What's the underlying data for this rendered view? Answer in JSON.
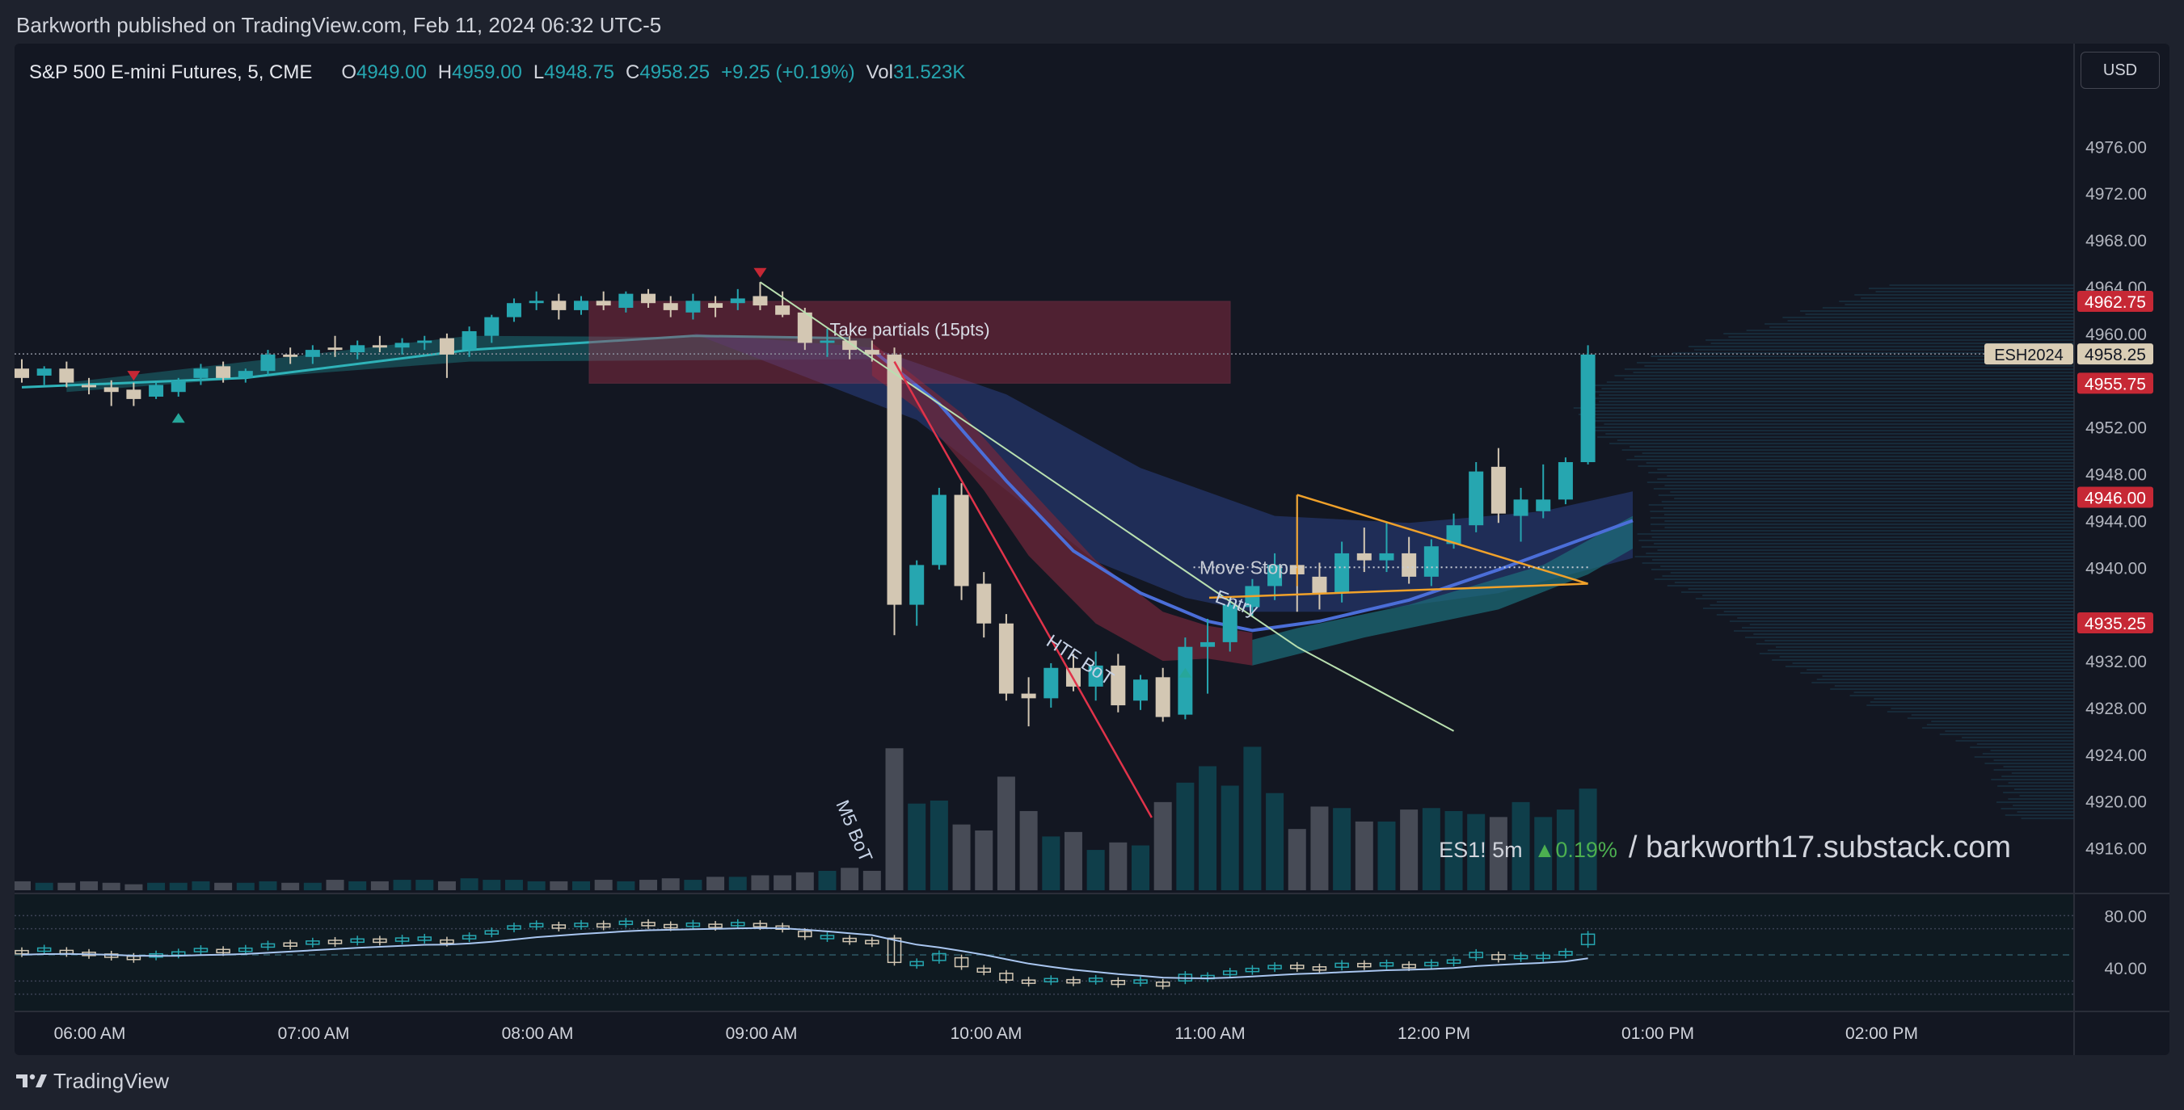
{
  "header": {
    "publisher_line": "Barkworth published on TradingView.com, Feb 11, 2024 06:32 UTC-5"
  },
  "legend": {
    "symbol": "S&P 500 E-mini Futures, 5, CME",
    "open_label": "O",
    "open": "4949.00",
    "high_label": "H",
    "high": "4959.00",
    "low_label": "L",
    "low": "4948.75",
    "close_label": "C",
    "close": "4958.25",
    "change": "+9.25 (+0.19%)",
    "vol_label": "Vol",
    "vol": "31.523K"
  },
  "currency_button": "USD",
  "watermark": {
    "ticker": "ES1! 5m",
    "change": "▲0.19%",
    "site": "/ barkworth17.substack.com"
  },
  "footer": {
    "brand": "TradingView"
  },
  "colors": {
    "up": "#26a6b0",
    "down": "#d3c7b3",
    "volume_up": "#0f3e4a",
    "volume_down": "#474b56",
    "marker_red": "#c62835",
    "marker_teal": "#26a69a"
  },
  "chart_data": {
    "type": "candlestick",
    "symbol": "ESH2024",
    "y_axis": {
      "ticks": [
        4916.0,
        4920.0,
        4924.0,
        4928.0,
        4932.0,
        4940.0,
        4944.0,
        4948.0,
        4952.0,
        4960.0,
        4964.0,
        4968.0,
        4972.0,
        4976.0
      ],
      "tick_labels": [
        "4916.00",
        "4920.00",
        "4924.00",
        "4928.00",
        "4932.00",
        "4940.00",
        "4944.00",
        "4948.00",
        "4952.00",
        "4960.00",
        "4964.00",
        "4968.00",
        "4972.00",
        "4976.00"
      ],
      "range": [
        4912,
        4981
      ]
    },
    "x_axis": {
      "tick_labels": [
        "06:00 AM",
        "07:00 AM",
        "08:00 AM",
        "09:00 AM",
        "10:00 AM",
        "11:00 AM",
        "12:00 PM",
        "01:00 PM",
        "02:00 PM"
      ]
    },
    "price_tags": [
      {
        "label": "4962.75",
        "value": 4962.75,
        "color": "#c62835"
      },
      {
        "label": "4958.25",
        "value": 4958.25,
        "color": "#d9cdb5",
        "name": "ESH2024"
      },
      {
        "label": "4955.75",
        "value": 4955.75,
        "color": "#c62835"
      },
      {
        "label": "4946.00",
        "value": 4946.0,
        "color": "#c62835"
      },
      {
        "label": "4935.25",
        "value": 4935.25,
        "color": "#c62835"
      }
    ],
    "candles": [
      {
        "o": 4957.0,
        "h": 4957.8,
        "l": 4955.8,
        "c": 4956.2
      },
      {
        "o": 4956.4,
        "h": 4957.2,
        "l": 4955.6,
        "c": 4957.0
      },
      {
        "o": 4957.0,
        "h": 4957.6,
        "l": 4955.4,
        "c": 4955.8
      },
      {
        "o": 4955.6,
        "h": 4956.2,
        "l": 4954.8,
        "c": 4955.4
      },
      {
        "o": 4955.4,
        "h": 4956.0,
        "l": 4953.8,
        "c": 4955.0
      },
      {
        "o": 4955.2,
        "h": 4955.8,
        "l": 4953.8,
        "c": 4954.4
      },
      {
        "o": 4954.6,
        "h": 4955.8,
        "l": 4954.4,
        "c": 4955.6
      },
      {
        "o": 4955.0,
        "h": 4956.2,
        "l": 4954.6,
        "c": 4956.0
      },
      {
        "o": 4956.2,
        "h": 4957.4,
        "l": 4955.6,
        "c": 4957.0
      },
      {
        "o": 4957.2,
        "h": 4957.6,
        "l": 4955.8,
        "c": 4956.2
      },
      {
        "o": 4956.2,
        "h": 4957.0,
        "l": 4955.8,
        "c": 4956.8
      },
      {
        "o": 4956.8,
        "h": 4958.6,
        "l": 4956.4,
        "c": 4958.2
      },
      {
        "o": 4958.2,
        "h": 4958.8,
        "l": 4957.4,
        "c": 4958.0
      },
      {
        "o": 4958.0,
        "h": 4959.0,
        "l": 4957.4,
        "c": 4958.6
      },
      {
        "o": 4958.8,
        "h": 4959.8,
        "l": 4958.0,
        "c": 4958.6
      },
      {
        "o": 4958.4,
        "h": 4959.4,
        "l": 4957.8,
        "c": 4959.0
      },
      {
        "o": 4959.0,
        "h": 4959.8,
        "l": 4958.4,
        "c": 4958.8
      },
      {
        "o": 4958.8,
        "h": 4959.6,
        "l": 4958.2,
        "c": 4959.2
      },
      {
        "o": 4959.2,
        "h": 4959.8,
        "l": 4958.6,
        "c": 4959.4
      },
      {
        "o": 4959.6,
        "h": 4960.0,
        "l": 4956.2,
        "c": 4958.2
      },
      {
        "o": 4958.6,
        "h": 4960.6,
        "l": 4958.0,
        "c": 4960.2
      },
      {
        "o": 4959.8,
        "h": 4961.6,
        "l": 4959.2,
        "c": 4961.4
      },
      {
        "o": 4961.4,
        "h": 4963.0,
        "l": 4961.0,
        "c": 4962.6
      },
      {
        "o": 4962.6,
        "h": 4963.6,
        "l": 4962.0,
        "c": 4962.8
      },
      {
        "o": 4962.8,
        "h": 4963.4,
        "l": 4961.2,
        "c": 4962.0
      },
      {
        "o": 4962.0,
        "h": 4963.2,
        "l": 4961.6,
        "c": 4962.8
      },
      {
        "o": 4962.8,
        "h": 4963.6,
        "l": 4962.0,
        "c": 4962.4
      },
      {
        "o": 4962.2,
        "h": 4963.6,
        "l": 4961.8,
        "c": 4963.4
      },
      {
        "o": 4963.4,
        "h": 4963.8,
        "l": 4962.2,
        "c": 4962.6
      },
      {
        "o": 4962.6,
        "h": 4963.2,
        "l": 4961.4,
        "c": 4962.0
      },
      {
        "o": 4961.8,
        "h": 4963.4,
        "l": 4961.2,
        "c": 4962.8
      },
      {
        "o": 4962.6,
        "h": 4963.2,
        "l": 4961.4,
        "c": 4962.2
      },
      {
        "o": 4962.6,
        "h": 4963.8,
        "l": 4962.0,
        "c": 4963.0
      },
      {
        "o": 4963.2,
        "h": 4964.4,
        "l": 4962.0,
        "c": 4962.4
      },
      {
        "o": 4962.4,
        "h": 4963.6,
        "l": 4961.4,
        "c": 4961.6
      },
      {
        "o": 4961.8,
        "h": 4962.2,
        "l": 4958.6,
        "c": 4959.2
      },
      {
        "o": 4959.2,
        "h": 4960.4,
        "l": 4958.0,
        "c": 4959.4
      },
      {
        "o": 4959.4,
        "h": 4959.8,
        "l": 4957.8,
        "c": 4958.6
      },
      {
        "o": 4958.6,
        "h": 4959.4,
        "l": 4957.6,
        "c": 4958.2
      },
      {
        "o": 4958.2,
        "h": 4958.8,
        "l": 4934.2,
        "c": 4936.8
      },
      {
        "o": 4936.8,
        "h": 4940.6,
        "l": 4935.0,
        "c": 4940.2
      },
      {
        "o": 4940.2,
        "h": 4946.8,
        "l": 4939.8,
        "c": 4946.2
      },
      {
        "o": 4946.2,
        "h": 4947.2,
        "l": 4937.2,
        "c": 4938.4
      },
      {
        "o": 4938.6,
        "h": 4939.6,
        "l": 4934.0,
        "c": 4935.2
      },
      {
        "o": 4935.2,
        "h": 4936.0,
        "l": 4928.6,
        "c": 4929.2
      },
      {
        "o": 4929.2,
        "h": 4930.6,
        "l": 4926.4,
        "c": 4928.8
      },
      {
        "o": 4928.8,
        "h": 4931.8,
        "l": 4928.0,
        "c": 4931.4
      },
      {
        "o": 4931.4,
        "h": 4932.6,
        "l": 4929.4,
        "c": 4929.8
      },
      {
        "o": 4929.8,
        "h": 4932.8,
        "l": 4928.6,
        "c": 4931.6
      },
      {
        "o": 4931.6,
        "h": 4932.6,
        "l": 4927.6,
        "c": 4928.2
      },
      {
        "o": 4928.6,
        "h": 4930.8,
        "l": 4927.8,
        "c": 4930.4
      },
      {
        "o": 4930.6,
        "h": 4931.4,
        "l": 4926.8,
        "c": 4927.2
      },
      {
        "o": 4927.4,
        "h": 4934.0,
        "l": 4927.0,
        "c": 4933.2
      },
      {
        "o": 4933.2,
        "h": 4935.6,
        "l": 4929.2,
        "c": 4933.6
      },
      {
        "o": 4933.6,
        "h": 4937.4,
        "l": 4932.8,
        "c": 4936.8
      },
      {
        "o": 4936.6,
        "h": 4939.0,
        "l": 4935.8,
        "c": 4938.4
      },
      {
        "o": 4938.4,
        "h": 4941.2,
        "l": 4937.2,
        "c": 4940.2
      },
      {
        "o": 4940.2,
        "h": 4946.2,
        "l": 4936.2,
        "c": 4939.4
      },
      {
        "o": 4939.2,
        "h": 4940.4,
        "l": 4936.4,
        "c": 4937.8
      },
      {
        "o": 4937.8,
        "h": 4942.2,
        "l": 4937.0,
        "c": 4941.2
      },
      {
        "o": 4941.2,
        "h": 4943.4,
        "l": 4939.6,
        "c": 4940.6
      },
      {
        "o": 4940.6,
        "h": 4943.8,
        "l": 4939.6,
        "c": 4941.2
      },
      {
        "o": 4941.2,
        "h": 4942.6,
        "l": 4938.6,
        "c": 4939.2
      },
      {
        "o": 4939.2,
        "h": 4942.4,
        "l": 4938.4,
        "c": 4941.8
      },
      {
        "o": 4942.0,
        "h": 4944.6,
        "l": 4941.6,
        "c": 4943.6
      },
      {
        "o": 4943.6,
        "h": 4949.0,
        "l": 4943.0,
        "c": 4948.2
      },
      {
        "o": 4948.6,
        "h": 4950.2,
        "l": 4943.8,
        "c": 4944.6
      },
      {
        "o": 4944.4,
        "h": 4946.8,
        "l": 4942.2,
        "c": 4945.8
      },
      {
        "o": 4944.8,
        "h": 4948.8,
        "l": 4944.2,
        "c": 4945.8
      },
      {
        "o": 4945.8,
        "h": 4949.4,
        "l": 4945.4,
        "c": 4949.0
      },
      {
        "o": 4949.0,
        "h": 4959.0,
        "l": 4948.8,
        "c": 4958.2
      }
    ],
    "volume": [
      0.6,
      0.5,
      0.5,
      0.6,
      0.5,
      0.4,
      0.5,
      0.5,
      0.6,
      0.5,
      0.5,
      0.6,
      0.5,
      0.5,
      0.7,
      0.6,
      0.6,
      0.7,
      0.7,
      0.6,
      0.8,
      0.7,
      0.7,
      0.6,
      0.6,
      0.6,
      0.7,
      0.6,
      0.7,
      0.8,
      0.7,
      0.9,
      0.9,
      1.0,
      1.0,
      1.2,
      1.3,
      1.5,
      1.3,
      9.5,
      5.8,
      6.0,
      4.4,
      4.0,
      7.6,
      5.3,
      3.6,
      3.9,
      2.7,
      3.2,
      3.0,
      5.9,
      7.2,
      8.3,
      7.0,
      9.6,
      6.5,
      4.1,
      5.6,
      5.5,
      4.6,
      4.6,
      5.4,
      5.5,
      5.3,
      5.1,
      4.9,
      5.9,
      4.9,
      5.4,
      6.8
    ],
    "drawings": [
      {
        "type": "rectangle",
        "label": "Take partials (15pts)",
        "top": 4962.75,
        "bottom": 4955.75
      },
      {
        "type": "trendline",
        "label": "M5 BoT"
      },
      {
        "type": "trendline",
        "label": "HTF BoT"
      },
      {
        "type": "trendline",
        "label": "Entry"
      },
      {
        "type": "horizontal",
        "label": "Move Stop",
        "value": 4940.0
      }
    ],
    "oscillator": {
      "ticks": [
        "80.00",
        "40.00"
      ],
      "levels": [
        80,
        70,
        50,
        30,
        20
      ]
    }
  }
}
